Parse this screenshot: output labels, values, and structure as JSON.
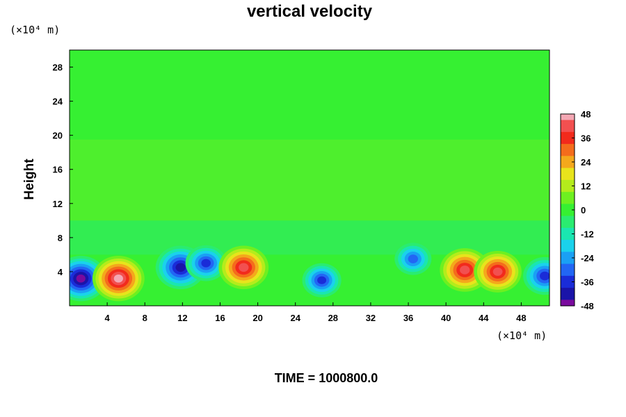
{
  "chart_data": {
    "type": "heatmap",
    "title": "vertical velocity",
    "ylabel": "Height",
    "x_unit": "(×10⁴ m)",
    "y_unit": "(×10⁴ m)",
    "xlim": [
      0,
      51
    ],
    "ylim": [
      0,
      30
    ],
    "x_ticks": [
      "4",
      "8",
      "12",
      "16",
      "20",
      "24",
      "28",
      "32",
      "36",
      "40",
      "44",
      "48"
    ],
    "y_ticks": [
      "4",
      "8",
      "12",
      "16",
      "20",
      "24",
      "28"
    ],
    "colorbar": {
      "range": [
        -48,
        48
      ],
      "tick_labels": [
        "48",
        "36",
        "24",
        "12",
        "0",
        "-12",
        "-24",
        "-36",
        "-48"
      ]
    },
    "features": [
      {
        "x": 1.2,
        "y": 3.2,
        "value": -48
      },
      {
        "x": 5.2,
        "y": 3.2,
        "value": 48
      },
      {
        "x": 11.8,
        "y": 4.5,
        "value": -46
      },
      {
        "x": 14.5,
        "y": 5.0,
        "value": -38
      },
      {
        "x": 18.5,
        "y": 4.5,
        "value": 46
      },
      {
        "x": 26.8,
        "y": 3.0,
        "value": -36
      },
      {
        "x": 36.5,
        "y": 5.5,
        "value": -34
      },
      {
        "x": 42.0,
        "y": 4.2,
        "value": 46
      },
      {
        "x": 45.5,
        "y": 4.0,
        "value": 44
      },
      {
        "x": 50.5,
        "y": 3.5,
        "value": -40
      }
    ]
  },
  "footer": {
    "time_label": "TIME = 1000800.0"
  }
}
